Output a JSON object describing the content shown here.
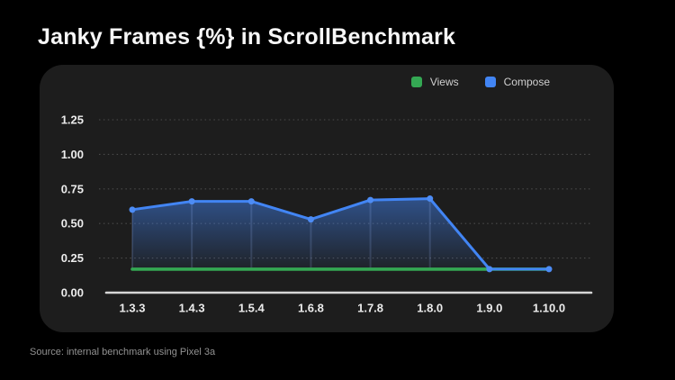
{
  "title": "Janky Frames {%} in ScrollBenchmark",
  "source": "Source: internal benchmark using Pixel 3a",
  "colors": {
    "background": "#000000",
    "panel": "#1d1d1d",
    "views_green": "#34a853",
    "compose_blue": "#4285f4",
    "axis_line": "#d6d6d6",
    "gridline": "#4b4b4b",
    "tick_text": "#ececec"
  },
  "legend": {
    "position": "top-right",
    "items": [
      {
        "label": "Views",
        "color": "#34a853"
      },
      {
        "label": "Compose",
        "color": "#4285f4"
      }
    ]
  },
  "chart_data": {
    "type": "line",
    "title": "Janky Frames {%} in ScrollBenchmark",
    "xlabel": "",
    "ylabel": "",
    "categories": [
      "1.3.3",
      "1.4.3",
      "1.5.4",
      "1.6.8",
      "1.7.8",
      "1.8.0",
      "1.9.0",
      "1.10.0"
    ],
    "series": [
      {
        "name": "Views",
        "color": "#34a853",
        "values": [
          0.17,
          0.17,
          0.17,
          0.17,
          0.17,
          0.17,
          0.17,
          0.17
        ]
      },
      {
        "name": "Compose",
        "color": "#4285f4",
        "values": [
          0.6,
          0.66,
          0.66,
          0.53,
          0.67,
          0.68,
          0.17,
          0.17
        ]
      }
    ],
    "ylim": [
      0,
      1.25
    ],
    "yticks": [
      0,
      0.25,
      0.5,
      0.75,
      1,
      1.25
    ],
    "ytick_format": "2dp",
    "grid": "dotted horizontal",
    "legend_position": "top-right",
    "area_fill_under": "Compose"
  }
}
